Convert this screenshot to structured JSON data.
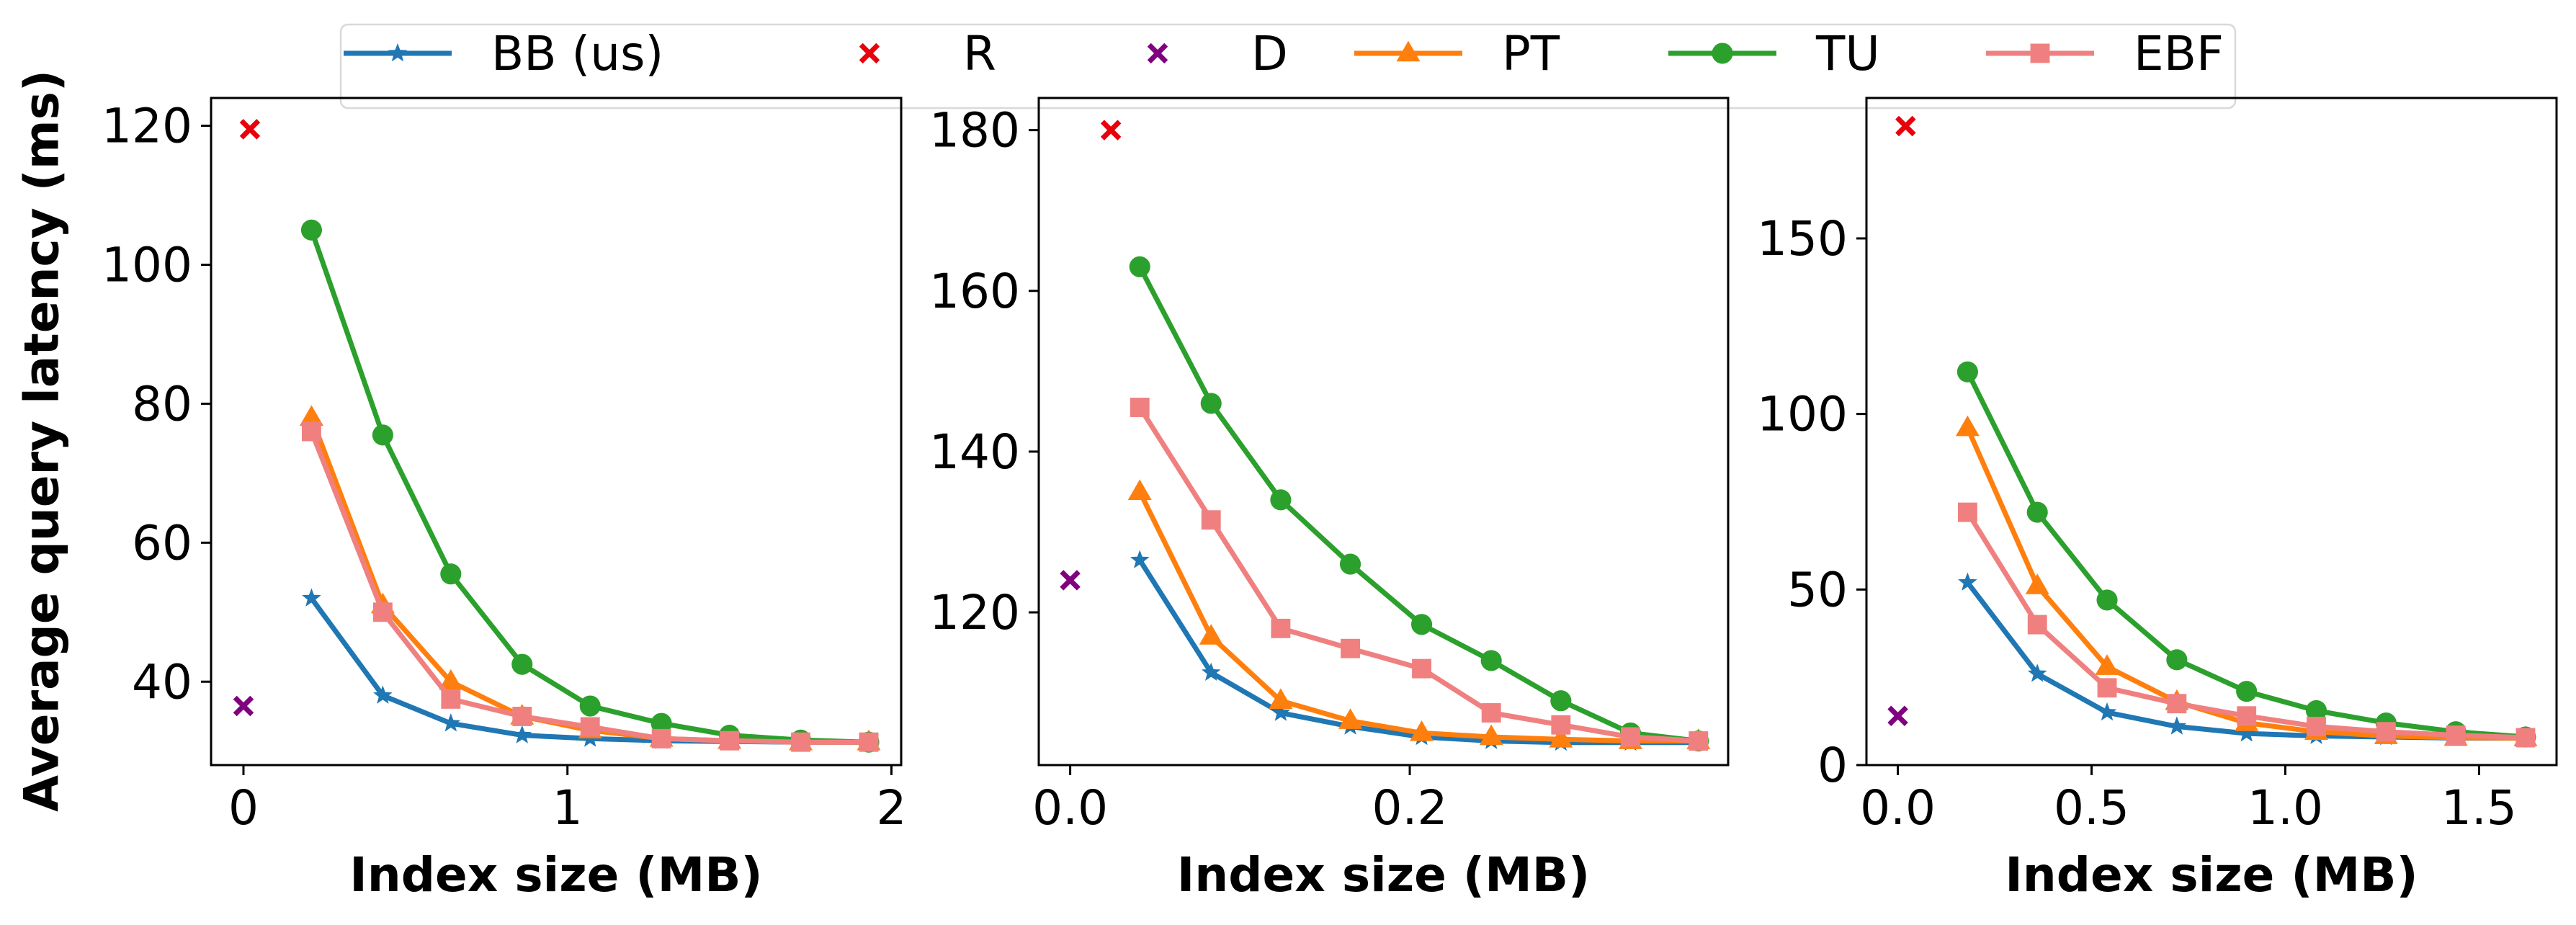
{
  "legend": {
    "entries": [
      {
        "label": "BB (us)",
        "color": "#1f77b4",
        "marker": "star",
        "line": true
      },
      {
        "label": "R",
        "color": "#e8000b",
        "marker": "x",
        "line": false
      },
      {
        "label": "D",
        "color": "#800080",
        "marker": "x",
        "line": false
      },
      {
        "label": "PT",
        "color": "#ff7f0e",
        "marker": "triangle",
        "line": true
      },
      {
        "label": "TU",
        "color": "#2ca02c",
        "marker": "circle",
        "line": true
      },
      {
        "label": "EBF",
        "color": "#f08080",
        "marker": "square",
        "line": true
      }
    ],
    "placement": "top-center"
  },
  "ylabel": "Average query latency (ms)",
  "chart_data": [
    {
      "type": "line",
      "xlabel": "Index size (MB)",
      "ylabel": "Average query latency (ms)",
      "xlim": [
        -0.1,
        2.03
      ],
      "ylim": [
        28,
        124
      ],
      "xticks": [
        0,
        1,
        2
      ],
      "xtick_labels": [
        "0",
        "1",
        "2"
      ],
      "yticks": [
        40,
        60,
        80,
        100,
        120
      ],
      "ytick_labels": [
        "40",
        "60",
        "80",
        "100",
        "120"
      ],
      "series": [
        {
          "name": "BB (us)",
          "x": [
            0.21,
            0.43,
            0.64,
            0.86,
            1.07,
            1.29,
            1.5,
            1.72,
            1.93
          ],
          "y": [
            52,
            38,
            34,
            32.3,
            31.8,
            31.5,
            31.4,
            31.3,
            31.3
          ]
        },
        {
          "name": "R",
          "x": [
            0.02
          ],
          "y": [
            119.5
          ]
        },
        {
          "name": "D",
          "x": [
            0.0
          ],
          "y": [
            36.5
          ]
        },
        {
          "name": "PT",
          "x": [
            0.21,
            0.43,
            0.64,
            0.86,
            1.07,
            1.29,
            1.5,
            1.72,
            1.93
          ],
          "y": [
            78,
            51,
            40,
            35,
            33,
            31.8,
            31.5,
            31.3,
            31.3
          ]
        },
        {
          "name": "TU",
          "x": [
            0.21,
            0.43,
            0.64,
            0.86,
            1.07,
            1.29,
            1.5,
            1.72,
            1.93
          ],
          "y": [
            105,
            75.5,
            55.5,
            42.5,
            36.5,
            34,
            32.3,
            31.6,
            31.3
          ]
        },
        {
          "name": "EBF",
          "x": [
            0.21,
            0.43,
            0.64,
            0.86,
            1.07,
            1.29,
            1.5,
            1.72,
            1.93
          ],
          "y": [
            76,
            50,
            37.5,
            35,
            33.5,
            31.8,
            31.5,
            31.3,
            31.3
          ]
        }
      ]
    },
    {
      "type": "line",
      "xlabel": "Index size (MB)",
      "ylabel": "",
      "xlim": [
        -0.0185,
        0.3875
      ],
      "ylim": [
        101,
        184
      ],
      "xticks": [
        0.0,
        0.2
      ],
      "xtick_labels": [
        "0.0",
        "0.2"
      ],
      "yticks": [
        120,
        140,
        160,
        180
      ],
      "ytick_labels": [
        "120",
        "140",
        "160",
        "180"
      ],
      "series": [
        {
          "name": "BB (us)",
          "x": [
            0.041,
            0.083,
            0.124,
            0.165,
            0.207,
            0.248,
            0.289,
            0.33,
            0.37
          ],
          "y": [
            126.5,
            112.5,
            107.5,
            105.8,
            104.5,
            104,
            103.8,
            103.8,
            103.8
          ]
        },
        {
          "name": "R",
          "x": [
            0.024
          ],
          "y": [
            180
          ]
        },
        {
          "name": "D",
          "x": [
            0.0
          ],
          "y": [
            124
          ]
        },
        {
          "name": "PT",
          "x": [
            0.041,
            0.083,
            0.124,
            0.165,
            0.207,
            0.248,
            0.289,
            0.33,
            0.37
          ],
          "y": [
            135,
            117,
            109,
            106.5,
            105,
            104.5,
            104.2,
            104,
            104
          ]
        },
        {
          "name": "TU",
          "x": [
            0.041,
            0.083,
            0.124,
            0.165,
            0.207,
            0.248,
            0.289,
            0.33,
            0.37
          ],
          "y": [
            163,
            146,
            134,
            126,
            118.5,
            114,
            109,
            105,
            104
          ]
        },
        {
          "name": "EBF",
          "x": [
            0.041,
            0.083,
            0.124,
            0.165,
            0.207,
            0.248,
            0.289,
            0.33,
            0.37
          ],
          "y": [
            145.5,
            131.5,
            118,
            115.5,
            113,
            107.5,
            106,
            104.5,
            104
          ]
        }
      ]
    },
    {
      "type": "line",
      "xlabel": "Index size (MB)",
      "ylabel": "",
      "xlim": [
        -0.081,
        1.7
      ],
      "ylim": [
        0,
        190
      ],
      "xticks": [
        0.0,
        0.5,
        1.0,
        1.5
      ],
      "xtick_labels": [
        "0.0",
        "0.5",
        "1.0",
        "1.5"
      ],
      "yticks": [
        0,
        50,
        100,
        150
      ],
      "ytick_labels": [
        "0",
        "50",
        "100",
        "150"
      ],
      "series": [
        {
          "name": "BB (us)",
          "x": [
            0.18,
            0.36,
            0.54,
            0.72,
            0.9,
            1.08,
            1.26,
            1.44,
            1.62
          ],
          "y": [
            52,
            26,
            15,
            11,
            9,
            8.3,
            8,
            7.7,
            7.7
          ]
        },
        {
          "name": "R",
          "x": [
            0.02
          ],
          "y": [
            182
          ]
        },
        {
          "name": "D",
          "x": [
            0.0
          ],
          "y": [
            14
          ]
        },
        {
          "name": "PT",
          "x": [
            0.18,
            0.36,
            0.54,
            0.72,
            0.9,
            1.08,
            1.26,
            1.44,
            1.62
          ],
          "y": [
            96,
            51,
            28,
            18,
            12,
            9.5,
            8.3,
            7.8,
            7.7
          ]
        },
        {
          "name": "TU",
          "x": [
            0.18,
            0.36,
            0.54,
            0.72,
            0.9,
            1.08,
            1.26,
            1.44,
            1.62
          ],
          "y": [
            112,
            72,
            47,
            30,
            21,
            15.5,
            12,
            9.5,
            8
          ]
        },
        {
          "name": "EBF",
          "x": [
            0.18,
            0.36,
            0.54,
            0.72,
            0.9,
            1.08,
            1.26,
            1.44,
            1.62
          ],
          "y": [
            72,
            40,
            22,
            17.5,
            14,
            11,
            9.5,
            8.5,
            7.8
          ]
        }
      ]
    }
  ]
}
